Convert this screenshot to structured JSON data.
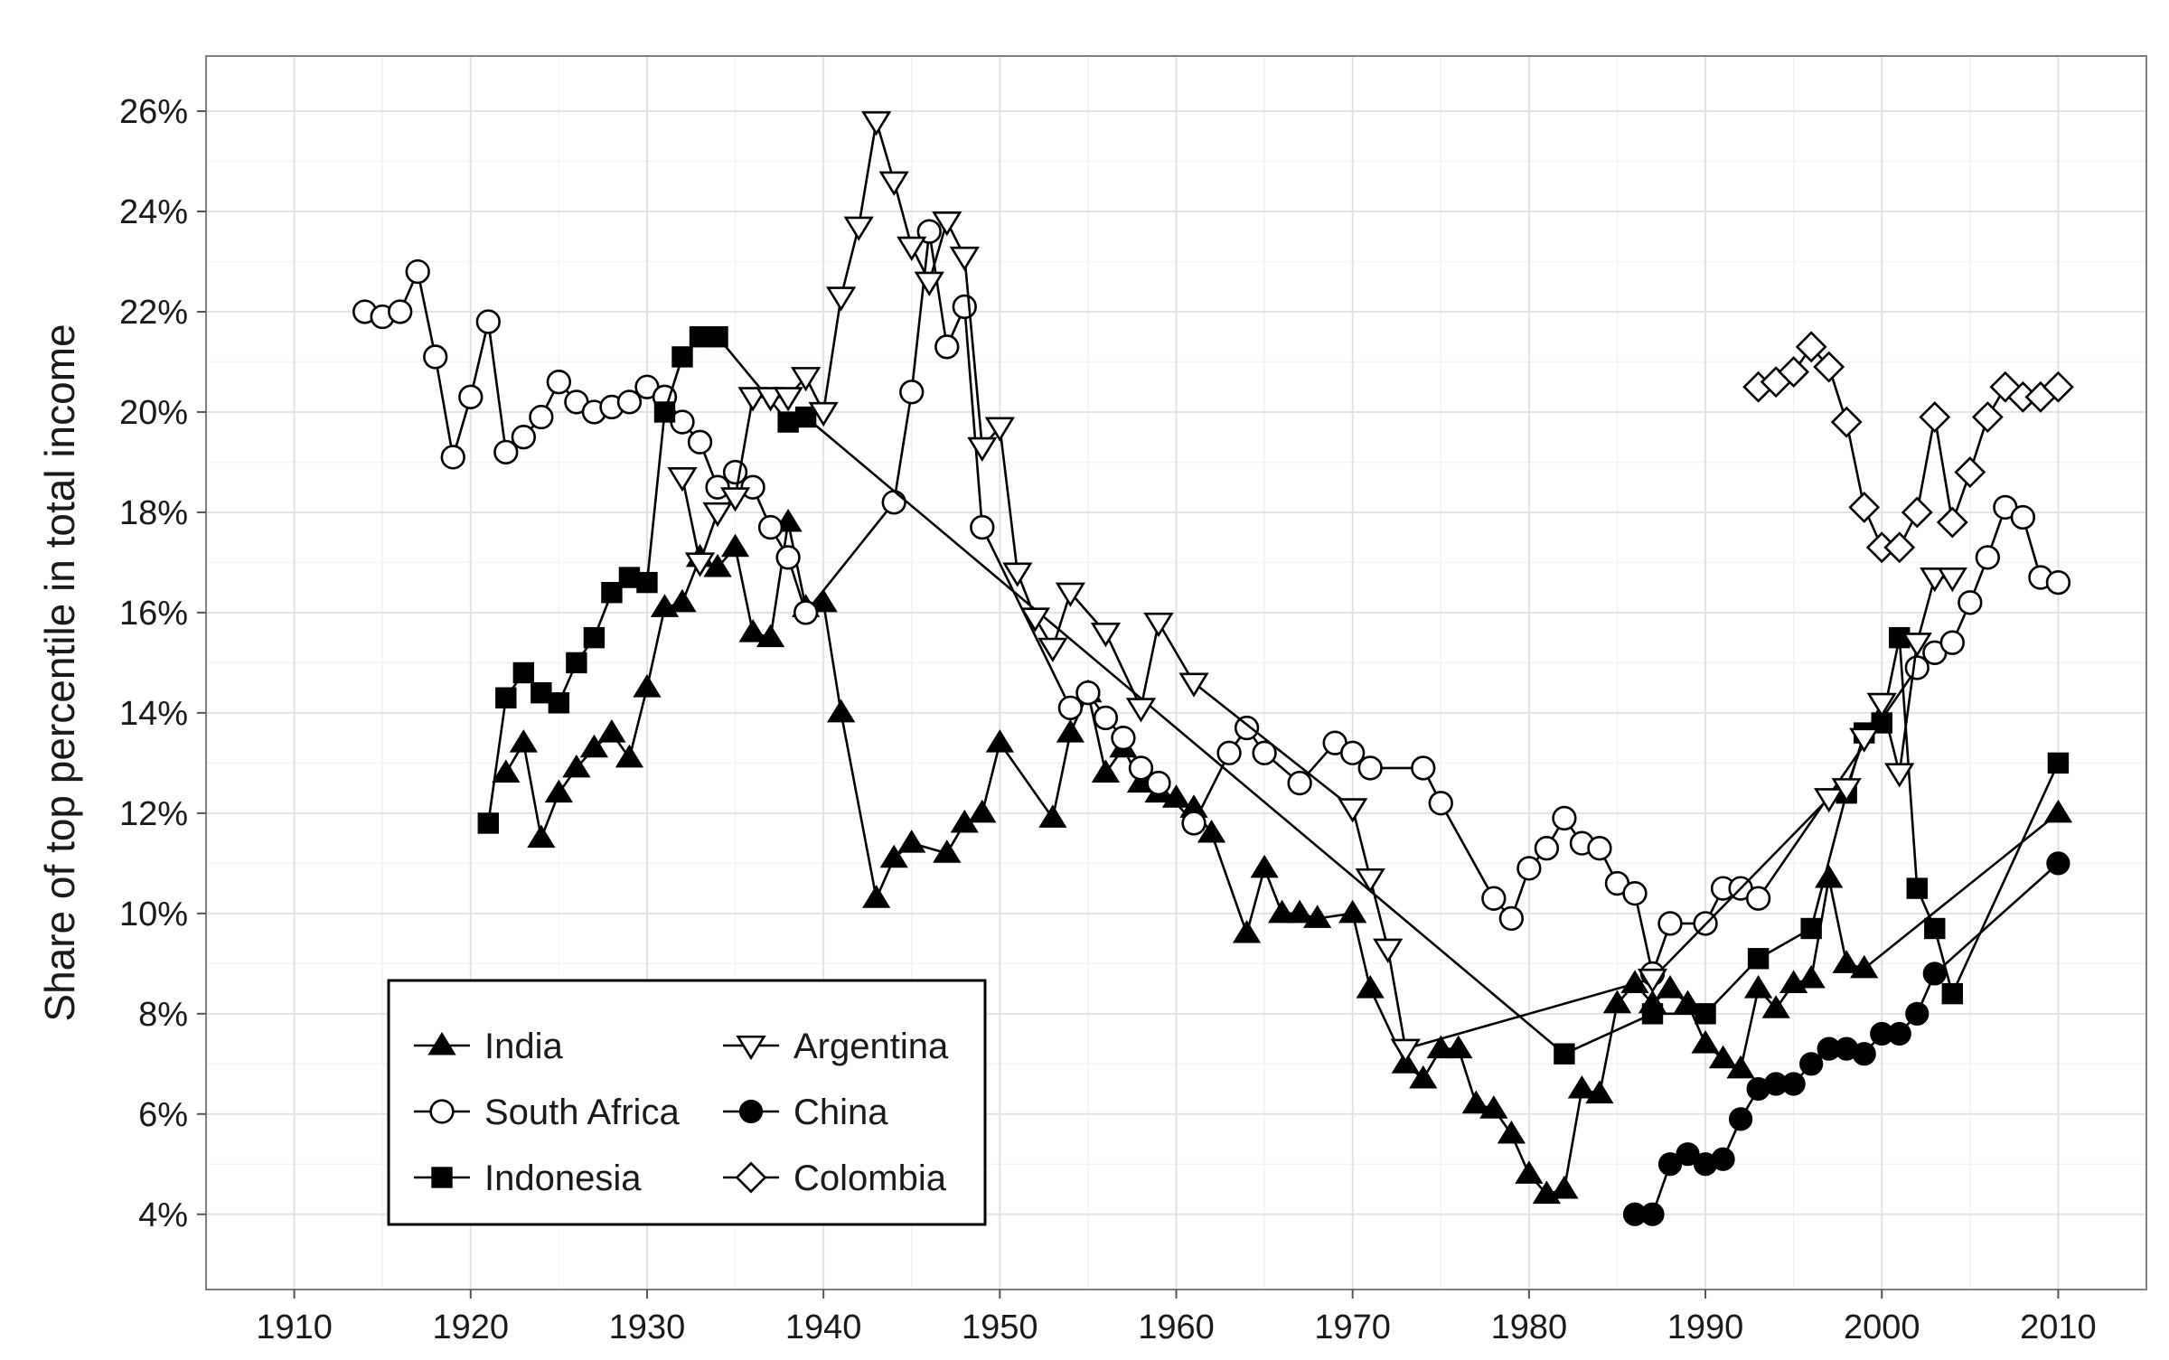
{
  "chart_data": {
    "type": "line",
    "title": "",
    "xlabel": "",
    "ylabel": "Share of top percentile in total income",
    "xlim": [
      1905,
      2015
    ],
    "ylim": [
      2.5,
      27.1
    ],
    "x_ticks": [
      1910,
      1920,
      1930,
      1940,
      1950,
      1960,
      1970,
      1980,
      1990,
      2000,
      2010
    ],
    "x_tick_labels": [
      "1910",
      "1920",
      "1930",
      "1940",
      "1950",
      "1960",
      "1970",
      "1980",
      "1990",
      "2000",
      "2010"
    ],
    "y_ticks": [
      4,
      6,
      8,
      10,
      12,
      14,
      16,
      18,
      20,
      22,
      24,
      26
    ],
    "y_tick_labels": [
      "4%",
      "6%",
      "8%",
      "10%",
      "12%",
      "14%",
      "16%",
      "18%",
      "20%",
      "22%",
      "24%",
      "26%"
    ],
    "grid": true,
    "legend_position": "bottom-left",
    "series": [
      {
        "name": "India",
        "marker": "triangle-up-filled",
        "x": [
          1922,
          1923,
          1924,
          1925,
          1926,
          1927,
          1928,
          1929,
          1930,
          1931,
          1932,
          1933,
          1934,
          1935,
          1936,
          1937,
          1938,
          1939,
          1940,
          1941,
          1943,
          1944,
          1945,
          1947,
          1948,
          1949,
          1950,
          1953,
          1954,
          1955,
          1956,
          1957,
          1958,
          1959,
          1960,
          1961,
          1962,
          1964,
          1965,
          1966,
          1967,
          1968,
          1970,
          1971,
          1973,
          1974,
          1975,
          1976,
          1977,
          1978,
          1979,
          1980,
          1981,
          1982,
          1983,
          1984,
          1985,
          1986,
          1987,
          1988,
          1989,
          1990,
          1991,
          1992,
          1993,
          1994,
          1995,
          1996,
          1997,
          1998,
          1999,
          2010
        ],
        "y": [
          12.8,
          13.4,
          11.5,
          12.4,
          12.9,
          13.3,
          13.6,
          13.1,
          14.5,
          16.1,
          16.2,
          17.1,
          16.9,
          17.3,
          15.6,
          15.5,
          17.8,
          16.1,
          16.2,
          14.0,
          10.3,
          11.1,
          11.4,
          11.2,
          11.8,
          12.0,
          13.4,
          11.9,
          13.6,
          14.4,
          12.8,
          13.3,
          12.6,
          12.4,
          12.3,
          12.1,
          11.6,
          9.6,
          10.9,
          10.0,
          10.0,
          9.9,
          10.0,
          8.5,
          7.0,
          6.7,
          7.3,
          7.3,
          6.2,
          6.1,
          5.6,
          4.8,
          4.4,
          4.5,
          6.5,
          6.4,
          8.2,
          8.6,
          8.2,
          8.5,
          8.2,
          7.4,
          7.1,
          6.9,
          8.5,
          8.1,
          8.6,
          8.7,
          10.7,
          9.0,
          8.9,
          12.0
        ]
      },
      {
        "name": "South Africa",
        "marker": "circle-open",
        "x": [
          1914,
          1915,
          1916,
          1917,
          1918,
          1919,
          1920,
          1921,
          1922,
          1923,
          1924,
          1925,
          1926,
          1927,
          1928,
          1929,
          1930,
          1931,
          1932,
          1933,
          1934,
          1935,
          1936,
          1937,
          1938,
          1939,
          1944,
          1945,
          1946,
          1947,
          1948,
          1949,
          1954,
          1955,
          1956,
          1957,
          1958,
          1959,
          1961,
          1963,
          1964,
          1965,
          1967,
          1969,
          1970,
          1971,
          1974,
          1975,
          1978,
          1979,
          1980,
          1981,
          1982,
          1983,
          1984,
          1985,
          1986,
          1987,
          1988,
          1990,
          1991,
          1992,
          1993,
          2002,
          2003,
          2004,
          2005,
          2006,
          2007,
          2008,
          2009,
          2010
        ],
        "y": [
          22.0,
          21.9,
          22.0,
          22.8,
          21.1,
          19.1,
          20.3,
          21.8,
          19.2,
          19.5,
          19.9,
          20.6,
          20.2,
          20.0,
          20.1,
          20.2,
          20.5,
          20.3,
          19.8,
          19.4,
          18.5,
          18.8,
          18.5,
          17.7,
          17.1,
          16.0,
          18.2,
          20.4,
          23.6,
          21.3,
          22.1,
          17.7,
          14.1,
          14.4,
          13.9,
          13.5,
          12.9,
          12.6,
          11.8,
          13.2,
          13.7,
          13.2,
          12.6,
          13.4,
          13.2,
          12.9,
          12.9,
          12.2,
          10.3,
          9.9,
          10.9,
          11.3,
          11.9,
          11.4,
          11.3,
          10.6,
          10.4,
          8.8,
          9.8,
          9.8,
          10.5,
          10.5,
          10.3,
          14.9,
          15.2,
          15.4,
          16.2,
          17.1,
          18.1,
          17.9,
          16.7,
          16.6
        ]
      },
      {
        "name": "Indonesia",
        "marker": "square-filled",
        "x": [
          1921,
          1922,
          1923,
          1924,
          1925,
          1926,
          1927,
          1928,
          1929,
          1930,
          1931,
          1932,
          1933,
          1934,
          1938,
          1939,
          1982,
          1987,
          1990,
          1993,
          1996,
          1998,
          1999,
          2000,
          2001,
          2002,
          2003,
          2004,
          2010
        ],
        "y": [
          11.8,
          14.3,
          14.8,
          14.4,
          14.2,
          15.0,
          15.5,
          16.4,
          16.7,
          16.6,
          20.0,
          21.1,
          21.5,
          21.5,
          19.8,
          19.9,
          7.2,
          8.0,
          8.0,
          9.1,
          9.7,
          12.4,
          13.6,
          13.8,
          15.5,
          10.5,
          9.7,
          8.4,
          13.0
        ]
      },
      {
        "name": "Argentina",
        "marker": "triangle-down-open",
        "x": [
          1932,
          1933,
          1934,
          1935,
          1936,
          1937,
          1938,
          1939,
          1940,
          1941,
          1942,
          1943,
          1944,
          1945,
          1946,
          1947,
          1948,
          1949,
          1950,
          1951,
          1952,
          1953,
          1954,
          1956,
          1958,
          1959,
          1961,
          1970,
          1971,
          1972,
          1973,
          1987,
          1997,
          1998,
          1999,
          2000,
          2001,
          2002,
          2003,
          2004
        ],
        "y": [
          18.7,
          17.0,
          18.0,
          18.3,
          20.3,
          20.3,
          20.3,
          20.7,
          20.0,
          22.3,
          23.7,
          25.8,
          24.6,
          23.3,
          22.6,
          23.8,
          23.1,
          19.3,
          19.7,
          16.8,
          15.9,
          15.3,
          16.4,
          15.6,
          14.1,
          15.8,
          14.6,
          12.1,
          10.7,
          9.3,
          7.3,
          8.7,
          12.3,
          12.5,
          13.5,
          14.2,
          12.8,
          15.4,
          16.7,
          16.7
        ]
      },
      {
        "name": "China",
        "marker": "circle-filled",
        "x": [
          1986,
          1987,
          1988,
          1989,
          1990,
          1991,
          1992,
          1993,
          1994,
          1995,
          1996,
          1997,
          1998,
          1999,
          2000,
          2001,
          2002,
          2003,
          2010
        ],
        "y": [
          4.0,
          4.0,
          5.0,
          5.2,
          5.0,
          5.1,
          5.9,
          6.5,
          6.6,
          6.6,
          7.0,
          7.3,
          7.3,
          7.2,
          7.6,
          7.6,
          8.0,
          8.8,
          11.0
        ]
      },
      {
        "name": "Colombia",
        "marker": "diamond-open",
        "x": [
          1993,
          1994,
          1995,
          1996,
          1997,
          1998,
          1999,
          2000,
          2001,
          2002,
          2003,
          2004,
          2005,
          2006,
          2007,
          2008,
          2009,
          2010
        ],
        "y": [
          20.5,
          20.6,
          20.8,
          21.3,
          20.9,
          19.8,
          18.1,
          17.3,
          17.3,
          18.0,
          19.9,
          17.8,
          18.8,
          19.9,
          20.5,
          20.3,
          20.3,
          20.5
        ]
      }
    ]
  }
}
